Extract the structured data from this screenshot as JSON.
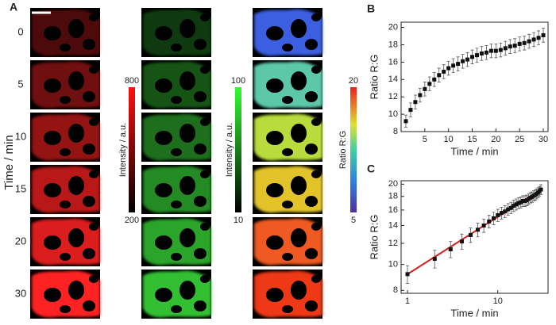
{
  "panel_labels": [
    "A",
    "B",
    "C"
  ],
  "images": {
    "row_labels": [
      "0",
      "5",
      "10",
      "15",
      "20",
      "30"
    ],
    "row_axis_label": "Time / min",
    "colorbars": [
      {
        "max": 800,
        "min": 200,
        "label": "Intensity / a.u."
      },
      {
        "max": 100,
        "min": 10,
        "label": "Intensity / a.u."
      },
      {
        "max": 20,
        "min": 5,
        "label": "Ratio R:G"
      }
    ]
  },
  "chart_data": [
    {
      "type": "scatter",
      "x": [
        1,
        2,
        3,
        4,
        5,
        6,
        7,
        8,
        9,
        10,
        11,
        12,
        13,
        14,
        15,
        16,
        17,
        18,
        19,
        20,
        21,
        22,
        23,
        24,
        25,
        26,
        27,
        28,
        29,
        30
      ],
      "values": [
        9.2,
        10.5,
        11.4,
        12.2,
        12.9,
        13.5,
        14.0,
        14.5,
        14.9,
        15.3,
        15.6,
        15.8,
        16.1,
        16.3,
        16.6,
        16.8,
        17.0,
        17.1,
        17.3,
        17.3,
        17.4,
        17.6,
        17.8,
        17.9,
        18.1,
        18.2,
        18.4,
        18.6,
        18.8,
        19.1
      ],
      "errors": [
        0.7,
        0.8,
        0.8,
        0.8,
        0.8,
        0.8,
        0.8,
        0.8,
        0.8,
        0.8,
        0.8,
        0.8,
        0.8,
        0.8,
        0.8,
        0.8,
        0.8,
        0.8,
        0.8,
        0.8,
        0.8,
        0.8,
        0.8,
        0.8,
        0.8,
        0.8,
        0.8,
        0.8,
        0.8,
        0.8
      ],
      "color": "#111111",
      "xlabel": "Time / min",
      "ylabel": "Ratio R:G",
      "xlim": [
        0,
        31
      ],
      "ylim": [
        8,
        20.6
      ],
      "xticks": [
        5,
        10,
        15,
        20,
        25,
        30
      ],
      "yticks": [
        8,
        10,
        12,
        14,
        16,
        18,
        20
      ]
    },
    {
      "type": "scatter",
      "x": [
        1,
        2,
        3,
        4,
        5,
        6,
        7,
        8,
        9,
        10,
        11,
        12,
        13,
        14,
        15,
        16,
        17,
        18,
        19,
        20,
        21,
        22,
        23,
        24,
        25,
        26,
        27,
        28,
        29,
        30
      ],
      "values": [
        9.2,
        10.5,
        11.4,
        12.2,
        12.9,
        13.5,
        14.0,
        14.5,
        14.9,
        15.3,
        15.6,
        15.8,
        16.1,
        16.3,
        16.6,
        16.8,
        17.0,
        17.1,
        17.3,
        17.3,
        17.4,
        17.6,
        17.8,
        17.9,
        18.1,
        18.2,
        18.4,
        18.6,
        18.8,
        19.1
      ],
      "errors": [
        0.7,
        0.8,
        0.8,
        0.8,
        0.8,
        0.8,
        0.8,
        0.8,
        0.8,
        0.8,
        0.8,
        0.8,
        0.8,
        0.8,
        0.8,
        0.8,
        0.8,
        0.8,
        0.8,
        0.8,
        0.8,
        0.8,
        0.8,
        0.8,
        0.8,
        0.8,
        0.8,
        0.8,
        0.8,
        0.8
      ],
      "color": "#111111",
      "xlabel": "Time / min",
      "ylabel": "Ratio R:G",
      "log_x": true,
      "log_y": true,
      "xlim": [
        0.85,
        36
      ],
      "ylim": [
        7.8,
        20.6
      ],
      "xticks": [
        1,
        10
      ],
      "yticks": [
        8,
        10,
        12,
        14,
        16,
        18,
        20
      ],
      "fit": {
        "x": [
          1,
          30
        ],
        "y": [
          9.2,
          19.1
        ],
        "color": "#d42020"
      }
    }
  ]
}
